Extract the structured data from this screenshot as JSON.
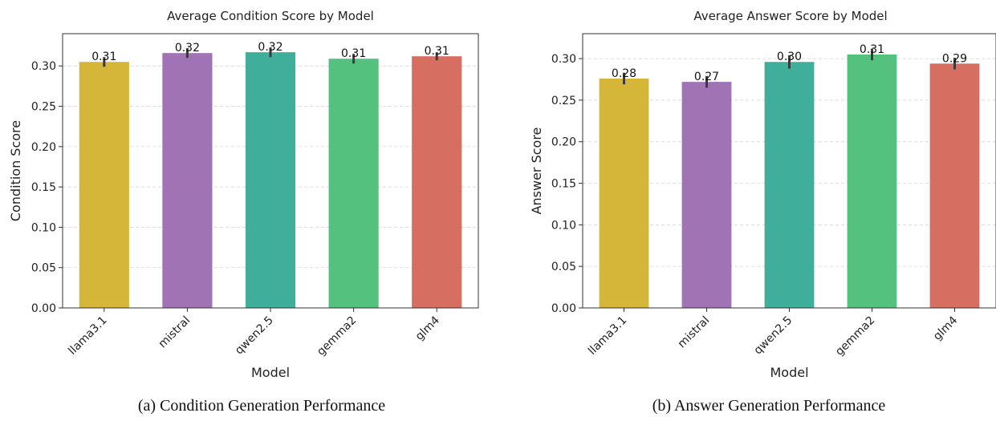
{
  "chart_data": [
    {
      "type": "bar",
      "title": "Average Condition Score by Model",
      "xlabel": "Model",
      "ylabel": "Condition Score",
      "caption": "(a) Condition Generation Performance",
      "ylim": [
        0,
        0.34
      ],
      "yticks": [
        0.0,
        0.05,
        0.1,
        0.15,
        0.2,
        0.25,
        0.3
      ],
      "categories": [
        "llama3.1",
        "mistral",
        "qwen2.5",
        "gemma2",
        "glm4"
      ],
      "values": [
        0.305,
        0.316,
        0.317,
        0.309,
        0.312
      ],
      "errors": [
        0.006,
        0.006,
        0.006,
        0.006,
        0.005
      ],
      "labels": [
        "0.31",
        "0.32",
        "0.32",
        "0.31",
        "0.31"
      ],
      "colors": [
        "#d4b22d",
        "#9b6bb1",
        "#35ab97",
        "#4bbe78",
        "#d4665a"
      ],
      "grid": true
    },
    {
      "type": "bar",
      "title": "Average Answer Score by Model",
      "xlabel": "Model",
      "ylabel": "Answer Score",
      "caption": "(b) Answer Generation Performance",
      "ylim": [
        0,
        0.33
      ],
      "yticks": [
        0.0,
        0.05,
        0.1,
        0.15,
        0.2,
        0.25,
        0.3
      ],
      "categories": [
        "llama3.1",
        "mistral",
        "qwen2.5",
        "gemma2",
        "glm4"
      ],
      "values": [
        0.276,
        0.272,
        0.296,
        0.305,
        0.294
      ],
      "errors": [
        0.007,
        0.007,
        0.008,
        0.007,
        0.007
      ],
      "labels": [
        "0.28",
        "0.27",
        "0.30",
        "0.31",
        "0.29"
      ],
      "colors": [
        "#d4b22d",
        "#9b6bb1",
        "#35ab97",
        "#4bbe78",
        "#d4665a"
      ],
      "grid": true
    }
  ]
}
